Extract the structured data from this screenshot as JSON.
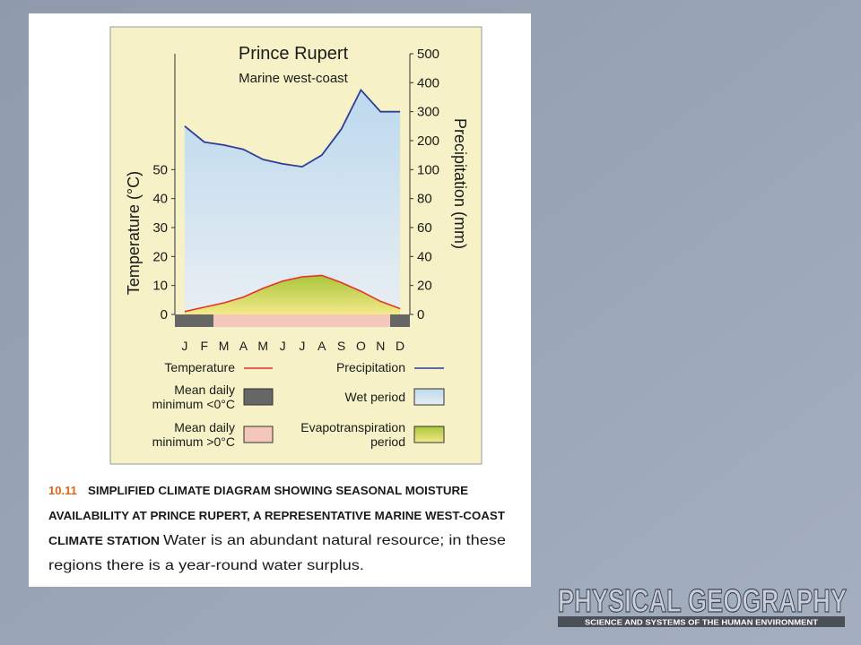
{
  "chart_data": {
    "type": "climate",
    "title": "Prince Rupert",
    "subtitle": "Marine west-coast",
    "ylabel": "Temperature (°C)",
    "y2label": "Precipitation (mm)",
    "categories": [
      "J",
      "F",
      "M",
      "A",
      "M",
      "J",
      "J",
      "A",
      "S",
      "O",
      "N",
      "D"
    ],
    "series": [
      {
        "name": "Temperature",
        "color": "#e8312a",
        "values": [
          1,
          2.5,
          4,
          6,
          9,
          11.5,
          13,
          13.5,
          11,
          8,
          4.5,
          2
        ]
      },
      {
        "name": "Precipitation",
        "color": "#2c3e9a",
        "axis": "y2",
        "values": [
          250,
          195,
          185,
          170,
          135,
          120,
          110,
          150,
          240,
          375,
          300,
          300
        ]
      }
    ],
    "ylim": [
      0,
      90
    ],
    "yticks": [
      0,
      10,
      20,
      30,
      40,
      50
    ],
    "y2lim": [
      0,
      500
    ],
    "y2ticks": [
      0,
      20,
      40,
      60,
      80,
      100,
      200,
      300,
      400,
      500
    ],
    "legend": {
      "cold": [
        "Mean daily",
        "minimum <0°C"
      ],
      "wet": [
        "Wet period"
      ],
      "warm": [
        "Mean daily",
        "minimum >0°C"
      ],
      "evap": [
        "Evapotranspiration",
        "period"
      ]
    }
  },
  "caption": {
    "number": "10.11",
    "heading": [
      "SIMPLIFIED CLIMATE DIAGRAM SHOWING SEASONAL MOISTURE",
      "AVAILABILITY AT PRINCE RUPERT, A REPRESENTATIVE MARINE WEST-COAST",
      "CLIMATE STATION"
    ],
    "text": [
      "Water is an abundant natural resource; in these",
      "regions there is a year-round water surplus."
    ]
  },
  "logo": {
    "title": "PHYSICAL GEOGRAPHY",
    "subtitle": "SCIENCE AND SYSTEMS OF THE HUMAN ENVIRONMENT"
  }
}
